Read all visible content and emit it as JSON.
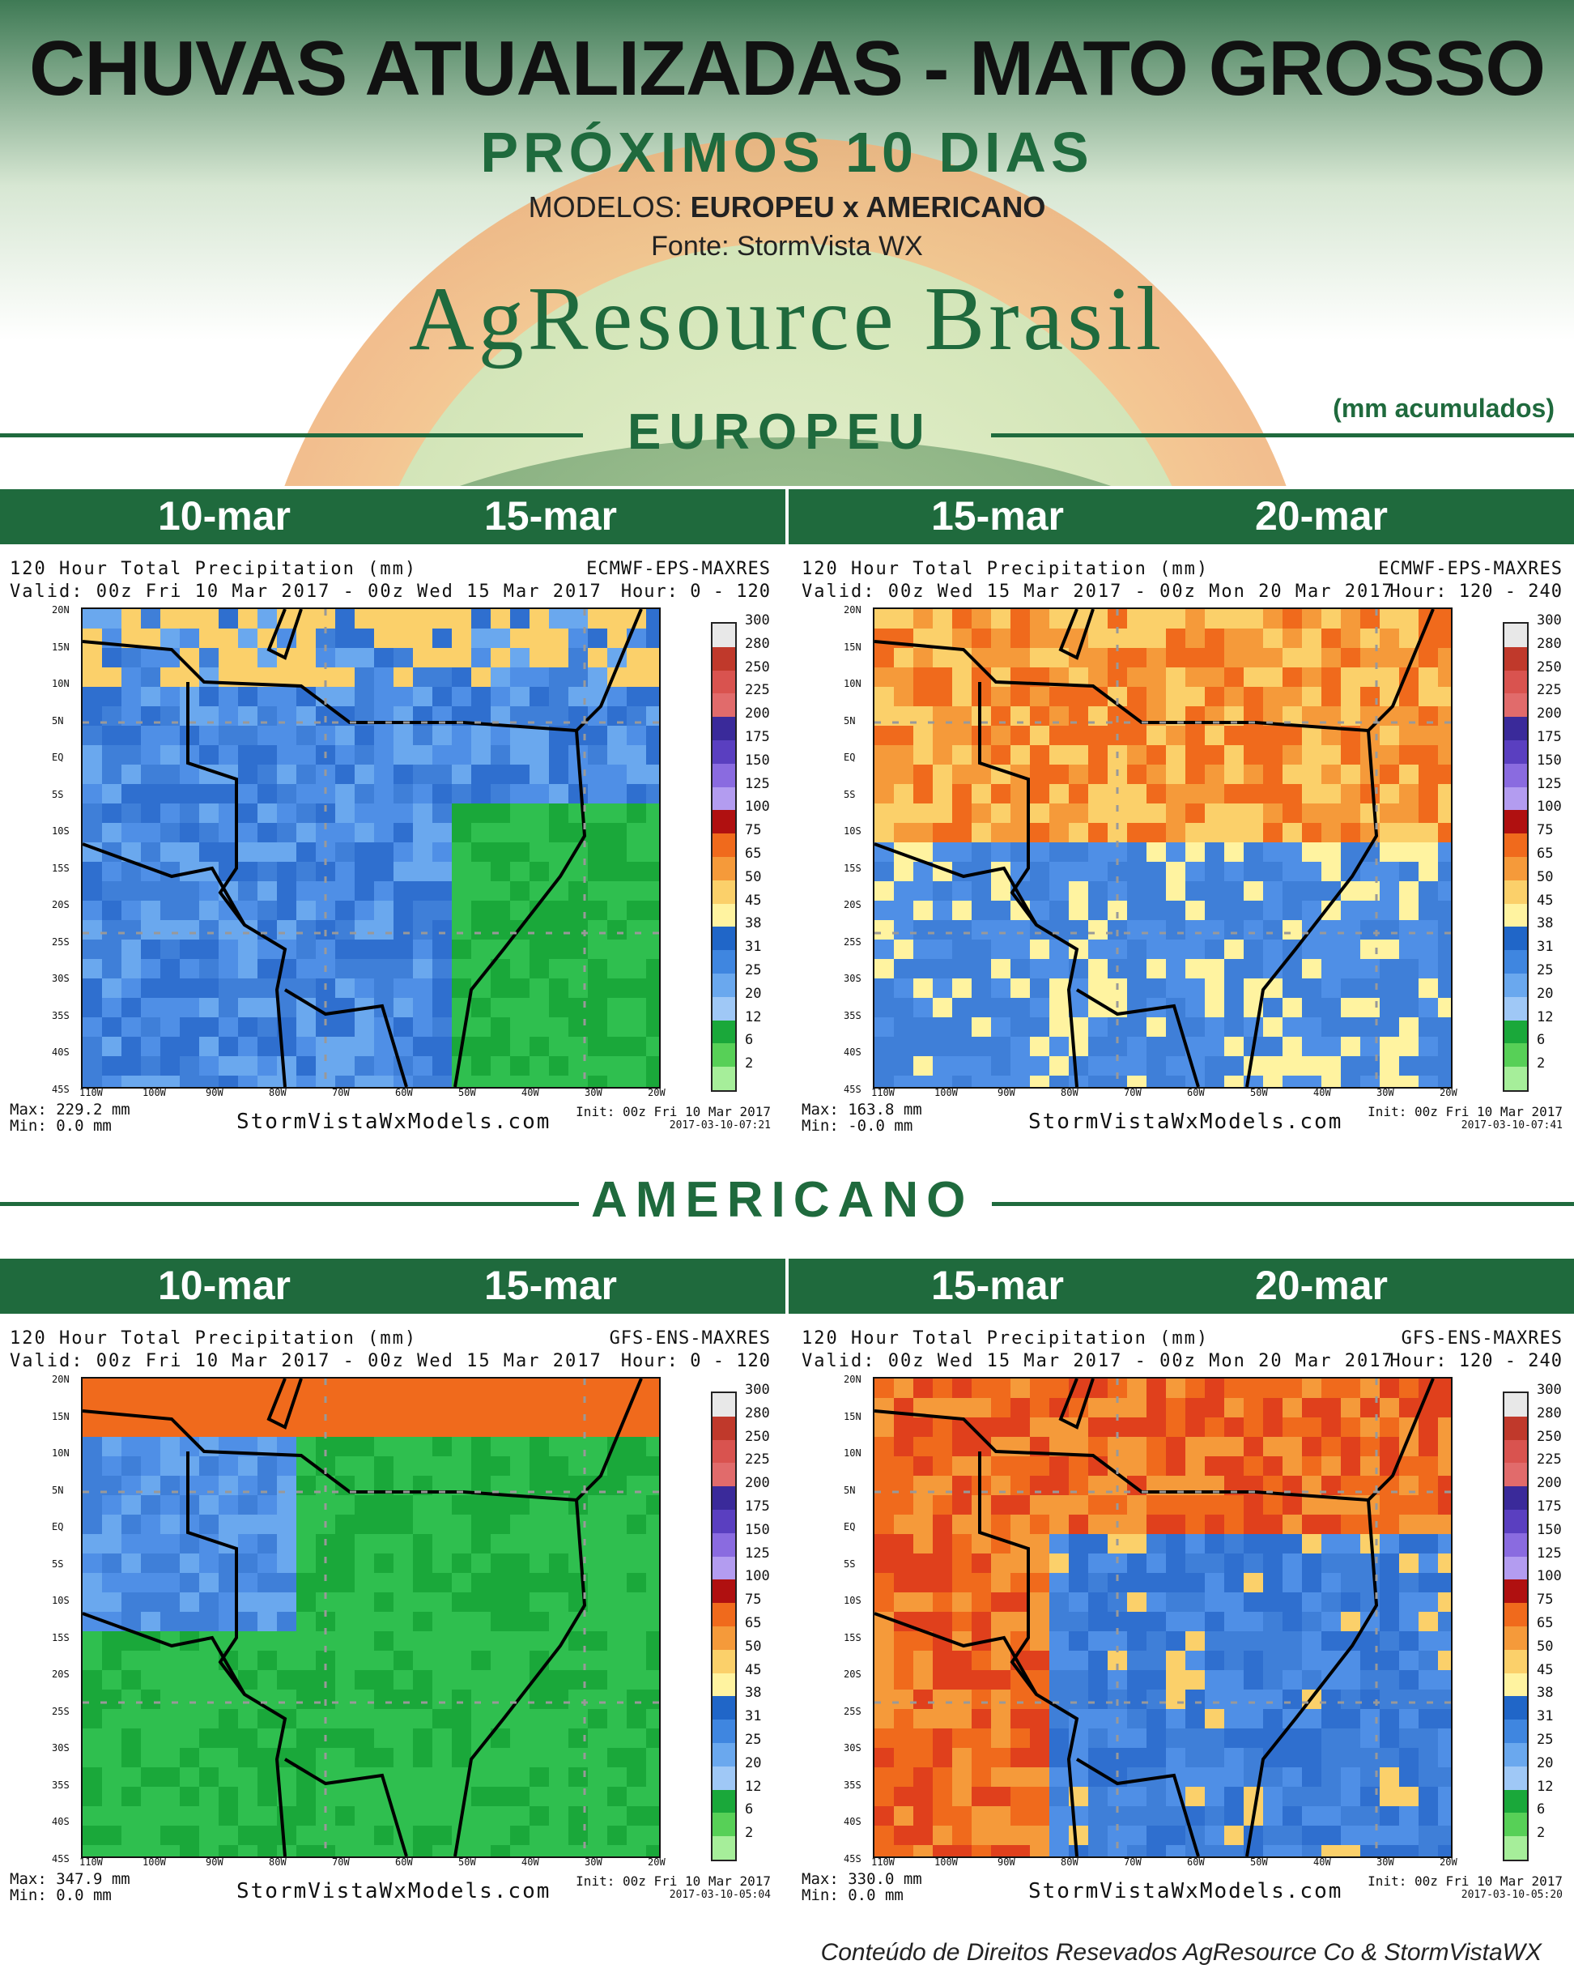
{
  "header": {
    "title": "CHUVAS ATUALIZADAS - MATO GROSSO",
    "subtitle": "PRÓXIMOS 10 DIAS",
    "models_prefix": "MODELOS: ",
    "models_value": "EUROPEU x AMERICANO",
    "source": "Fonte: StormVista WX",
    "brand": "AgResource Brasil",
    "unit_note": "(mm acumulados)"
  },
  "sections": [
    {
      "name": "EUROPEU",
      "dates": [
        "10-mar",
        "15-mar",
        "15-mar",
        "20-mar"
      ],
      "panels": [
        {
          "heading": "120 Hour Total Precipitation (mm)",
          "model": "ECMWF-EPS-MAXRES",
          "valid": "Valid: 00z Fri 10 Mar 2017 - 00z Wed 15 Mar 2017",
          "hour": "Hour: 0 - 120",
          "max": "Max: 229.2 mm",
          "min": "Min: 0.0 mm",
          "site": "StormVistaWxModels.com",
          "init": "Init: 00z Fri 10 Mar 2017",
          "stamp": "2017-03-10-07:21",
          "scheme": "blue-green"
        },
        {
          "heading": "120 Hour Total Precipitation (mm)",
          "model": "ECMWF-EPS-MAXRES",
          "valid": "Valid: 00z Wed 15 Mar 2017 - 00z Mon 20 Mar 2017",
          "hour": "Hour: 120 - 240",
          "max": "Max: 163.8 mm",
          "min": "Min: -0.0 mm",
          "site": "StormVistaWxModels.com",
          "init": "Init: 00z Fri 10 Mar 2017",
          "stamp": "2017-03-10-07:41",
          "scheme": "orange-blue"
        }
      ]
    },
    {
      "name": "AMERICANO",
      "dates": [
        "10-mar",
        "15-mar",
        "15-mar",
        "20-mar"
      ],
      "panels": [
        {
          "heading": "120 Hour Total Precipitation (mm)",
          "model": "GFS-ENS-MAXRES",
          "valid": "Valid: 00z Fri 10 Mar 2017 - 00z Wed 15 Mar 2017",
          "hour": "Hour: 0 - 120",
          "max": "Max: 347.9 mm",
          "min": "Min: 0.0 mm",
          "site": "StormVistaWxModels.com",
          "init": "Init: 00z Fri 10 Mar 2017",
          "stamp": "2017-03-10-05:04",
          "scheme": "green-blue-red"
        },
        {
          "heading": "120 Hour Total Precipitation (mm)",
          "model": "GFS-ENS-MAXRES",
          "valid": "Valid: 00z Wed 15 Mar 2017 - 00z Mon 20 Mar 2017",
          "hour": "Hour: 120 - 240",
          "max": "Max: 330.0 mm",
          "min": "Min: 0.0 mm",
          "site": "StormVistaWxModels.com",
          "init": "Init: 00z Fri 10 Mar 2017",
          "stamp": "2017-03-10-05:20",
          "scheme": "red-orange-blue"
        }
      ]
    }
  ],
  "lat_labels": [
    "20N",
    "15N",
    "10N",
    "5N",
    "EQ",
    "5S",
    "10S",
    "15S",
    "20S",
    "25S",
    "30S",
    "35S",
    "40S",
    "45S"
  ],
  "lon_labels": [
    "110W",
    "100W",
    "90W",
    "80W",
    "70W",
    "60W",
    "50W",
    "40W",
    "30W",
    "20W"
  ],
  "colorbar": {
    "labels": [
      "300",
      "280",
      "250",
      "225",
      "200",
      "175",
      "150",
      "125",
      "100",
      "75",
      "65",
      "50",
      "45",
      "38",
      "31",
      "25",
      "20",
      "12",
      "6",
      "2"
    ],
    "colors": [
      "#e8e8e8",
      "#c0392b",
      "#d9534f",
      "#e16b6b",
      "#3a2a9a",
      "#5a3fc0",
      "#8a6be0",
      "#b39cf0",
      "#b01010",
      "#f06a1c",
      "#f59a3a",
      "#fbd06a",
      "#fff3a0",
      "#2066c8",
      "#3f86e0",
      "#6aa8ee",
      "#9fc8f6",
      "#1aa83a",
      "#57d057",
      "#a6ee9a"
    ]
  },
  "footer": "Conteúdo de Direitos Resevados AgResource Co & StormVistaWX"
}
